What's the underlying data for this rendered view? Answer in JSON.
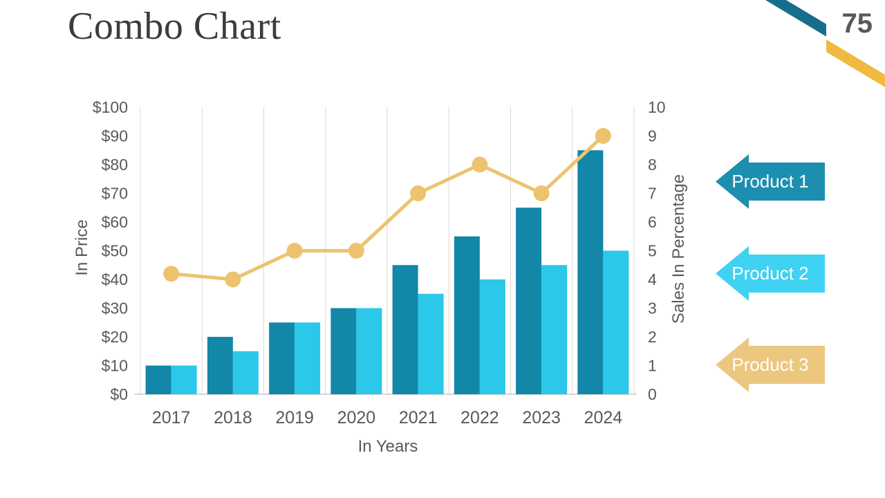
{
  "slide": {
    "title": "Combo Chart",
    "page_number": "75"
  },
  "chart_data": {
    "type": "combo",
    "categories": [
      "2017",
      "2018",
      "2019",
      "2020",
      "2021",
      "2022",
      "2023",
      "2024"
    ],
    "series": [
      {
        "name": "Product 1",
        "type": "bar",
        "axis": "left",
        "color": "#1287A8",
        "values": [
          10,
          20,
          25,
          30,
          45,
          55,
          65,
          85
        ]
      },
      {
        "name": "Product 2",
        "type": "bar",
        "axis": "left",
        "color": "#2BC8EA",
        "values": [
          10,
          15,
          25,
          30,
          35,
          40,
          45,
          50
        ]
      },
      {
        "name": "Product 3",
        "type": "line",
        "axis": "right",
        "color": "#EDC36E",
        "values": [
          4.2,
          4,
          5,
          5,
          7,
          8,
          7,
          9
        ]
      }
    ],
    "left_axis": {
      "label": "In Price",
      "min": 0,
      "max": 100,
      "ticks": [
        "$0",
        "$10",
        "$20",
        "$30",
        "$40",
        "$50",
        "$60",
        "$70",
        "$80",
        "$90",
        "$100"
      ]
    },
    "right_axis": {
      "label": "Sales In Percentage",
      "min": 0,
      "max": 10,
      "ticks": [
        "0",
        "1",
        "2",
        "3",
        "4",
        "5",
        "6",
        "7",
        "8",
        "9",
        "10"
      ]
    },
    "x_axis": {
      "label": "In Years"
    },
    "grid": "vertical-only",
    "legend_position": "right"
  },
  "legend": {
    "items": [
      {
        "label": "Product 1",
        "color": "#1C8FB0"
      },
      {
        "label": "Product 2",
        "color": "#3FD2F2"
      },
      {
        "label": "Product 3",
        "color": "#EBC780"
      }
    ]
  },
  "decor": {
    "corner_teal": "#176E8C",
    "corner_gold": "#F0B93F",
    "text_gray": "#595959",
    "gridline_color": "#D9D9D9",
    "baseline_color": "#C6C6C6"
  }
}
